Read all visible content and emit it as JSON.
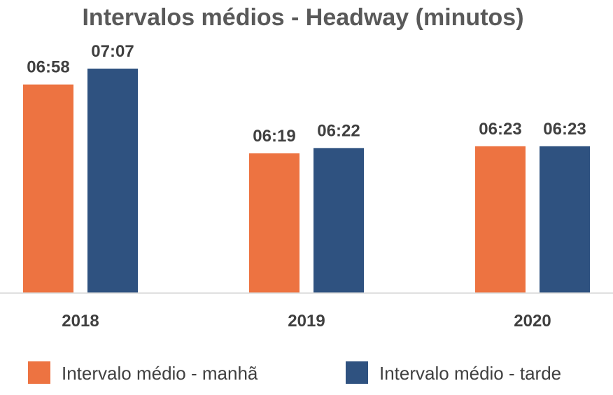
{
  "chart_data": {
    "type": "bar",
    "title": "Intervalos médios - Headway (minutos)",
    "xlabel": "",
    "ylabel": "",
    "categories": [
      "2018",
      "2019",
      "2020"
    ],
    "series": [
      {
        "name": "Intervalo médio - manhã",
        "color": "#ED7341",
        "values": [
          418,
          379,
          383
        ],
        "labels": [
          "06:58",
          "06:19",
          "06:23"
        ]
      },
      {
        "name": "Intervalo médio - tarde",
        "color": "#2F5280",
        "values": [
          427,
          382,
          383
        ],
        "labels": [
          "07:07",
          "06:22",
          "06:23"
        ]
      }
    ],
    "ylim": [
      300,
      450
    ],
    "value_unit": "seconds",
    "grid": false,
    "legend_position": "bottom",
    "axis_color": "#D9D9D9"
  }
}
